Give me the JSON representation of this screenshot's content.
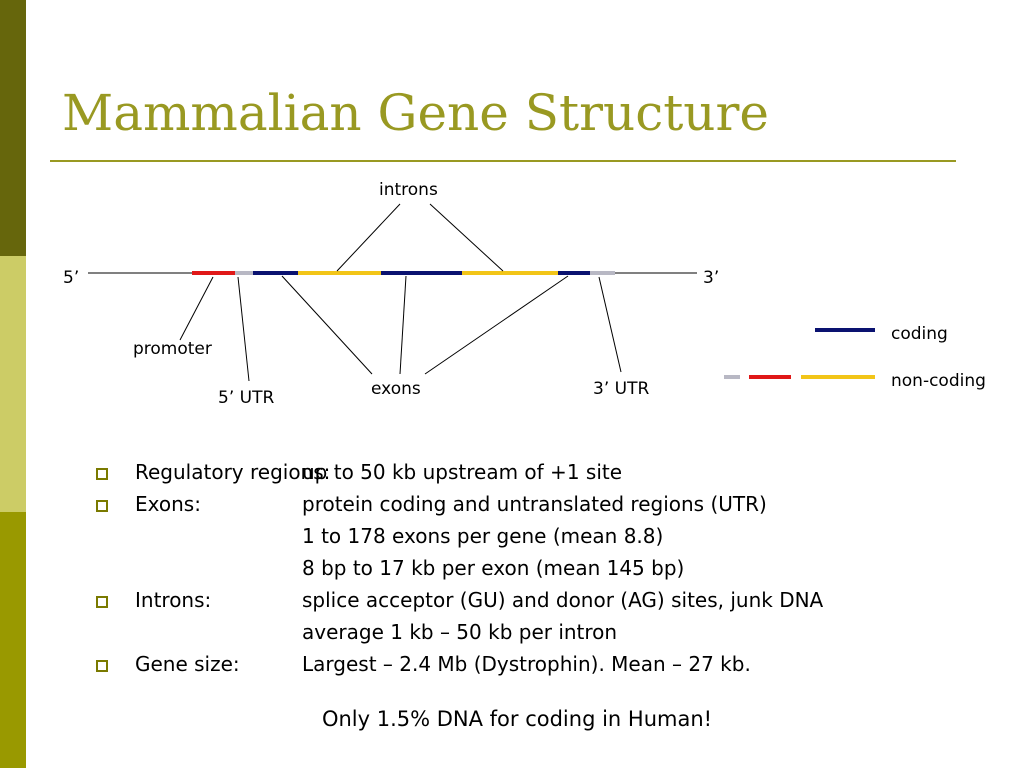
{
  "title": "Mammalian Gene Structure",
  "diagram": {
    "labels": {
      "five_prime": "5’",
      "three_prime": "3’",
      "introns": "introns",
      "exons": "exons",
      "promoter": "promoter",
      "utr5": "5’ UTR",
      "utr3": "3’ UTR"
    },
    "legend": {
      "coding": "coding",
      "noncoding": "non-coding"
    },
    "colors": {
      "coding": "#0a1270",
      "exon_noncoding": "#f2c518",
      "promoter": "#e01818",
      "utr": "#b8b8c4"
    }
  },
  "bullets": [
    {
      "label": "Regulatory regions:",
      "lines": [
        "up to 50 kb upstream of +1 site"
      ]
    },
    {
      "label": "Exons:",
      "lines": [
        "protein coding and untranslated regions (UTR)",
        "1 to 178 exons per gene (mean 8.8)",
        "8 bp to 17 kb per exon (mean 145 bp)"
      ]
    },
    {
      "label": "Introns:",
      "lines": [
        "splice acceptor (GU) and donor (AG) sites, junk DNA",
        "average 1 kb – 50 kb per intron"
      ]
    },
    {
      "label": "Gene size:",
      "lines": [
        "Largest – 2.4 Mb (Dystrophin). Mean – 27 kb."
      ]
    }
  ],
  "footer": "Only 1.5% DNA for coding in Human!"
}
